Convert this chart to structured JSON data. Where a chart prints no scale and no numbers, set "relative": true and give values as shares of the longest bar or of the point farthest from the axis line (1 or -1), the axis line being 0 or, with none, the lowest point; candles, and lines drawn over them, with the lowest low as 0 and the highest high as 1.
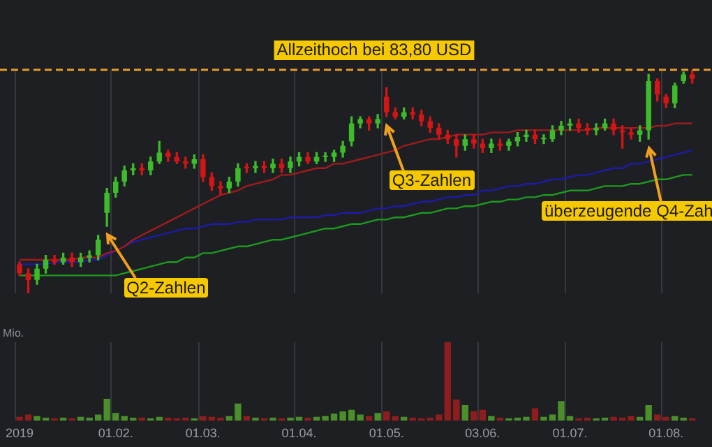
{
  "chart_data": [
    {
      "type": "candlestick",
      "relative": true,
      "grid": "x",
      "tick_labels": false,
      "marker": "none",
      "categories": [
        "2019",
        null,
        null,
        null,
        null,
        null,
        null,
        null,
        null,
        null,
        null,
        "01.02.",
        null,
        null,
        null,
        null,
        null,
        null,
        null,
        null,
        null,
        "01.03.",
        null,
        null,
        null,
        null,
        null,
        null,
        null,
        null,
        null,
        null,
        "01.04.",
        null,
        null,
        null,
        null,
        null,
        null,
        null,
        null,
        null,
        "01.05.",
        null,
        null,
        null,
        null,
        null,
        null,
        null,
        null,
        null,
        null,
        "03.06.",
        null,
        null,
        null,
        null,
        null,
        null,
        null,
        null,
        null,
        "01.07.",
        null,
        null,
        null,
        null,
        null,
        null,
        null,
        null,
        null,
        null,
        "01.08.",
        null,
        null,
        null
      ],
      "ohlc": [
        [
          0.13,
          0.14,
          0.08,
          0.09
        ],
        [
          0.09,
          0.11,
          0,
          0.06
        ],
        [
          0.06,
          0.13,
          0.04,
          0.11
        ],
        [
          0.11,
          0.17,
          0.09,
          0.15
        ],
        [
          0.15,
          0.17,
          0.13,
          0.14
        ],
        [
          0.14,
          0.18,
          0.13,
          0.16
        ],
        [
          0.16,
          0.18,
          0.12,
          0.14
        ],
        [
          0.14,
          0.18,
          0.12,
          0.16
        ],
        [
          0.16,
          0.19,
          0.14,
          0.17
        ],
        [
          0.17,
          0.26,
          0.15,
          0.24
        ],
        [
          0.36,
          0.47,
          0.3,
          0.45
        ],
        [
          0.45,
          0.52,
          0.43,
          0.5
        ],
        [
          0.5,
          0.57,
          0.48,
          0.55
        ],
        [
          0.55,
          0.58,
          0.53,
          0.56
        ],
        [
          0.56,
          0.58,
          0.53,
          0.55
        ],
        [
          0.55,
          0.61,
          0.53,
          0.59
        ],
        [
          0.59,
          0.68,
          0.58,
          0.63
        ],
        [
          0.63,
          0.64,
          0.59,
          0.61
        ],
        [
          0.61,
          0.63,
          0.58,
          0.59
        ],
        [
          0.59,
          0.61,
          0.56,
          0.58
        ],
        [
          0.58,
          0.62,
          0.56,
          0.6
        ],
        [
          0.6,
          0.62,
          0.5,
          0.52
        ],
        [
          0.52,
          0.54,
          0.46,
          0.48
        ],
        [
          0.48,
          0.5,
          0.44,
          0.47
        ],
        [
          0.47,
          0.52,
          0.45,
          0.5
        ],
        [
          0.5,
          0.58,
          0.48,
          0.56
        ],
        [
          0.56,
          0.58,
          0.54,
          0.56
        ],
        [
          0.56,
          0.59,
          0.54,
          0.57
        ],
        [
          0.57,
          0.59,
          0.54,
          0.56
        ],
        [
          0.56,
          0.6,
          0.54,
          0.58
        ],
        [
          0.58,
          0.6,
          0.54,
          0.56
        ],
        [
          0.56,
          0.61,
          0.54,
          0.59
        ],
        [
          0.59,
          0.63,
          0.57,
          0.61
        ],
        [
          0.61,
          0.63,
          0.58,
          0.59
        ],
        [
          0.59,
          0.63,
          0.58,
          0.61
        ],
        [
          0.61,
          0.63,
          0.59,
          0.61
        ],
        [
          0.61,
          0.64,
          0.59,
          0.63
        ],
        [
          0.63,
          0.68,
          0.61,
          0.66
        ],
        [
          0.68,
          0.79,
          0.66,
          0.76
        ],
        [
          0.76,
          0.79,
          0.74,
          0.78
        ],
        [
          0.78,
          0.79,
          0.73,
          0.76
        ],
        [
          0.76,
          0.8,
          0.74,
          0.78
        ],
        [
          0.88,
          0.92,
          0.79,
          0.81
        ],
        [
          0.81,
          0.83,
          0.78,
          0.79
        ],
        [
          0.79,
          0.83,
          0.78,
          0.81
        ],
        [
          0.81,
          0.83,
          0.78,
          0.8
        ],
        [
          0.8,
          0.82,
          0.75,
          0.77
        ],
        [
          0.77,
          0.79,
          0.72,
          0.74
        ],
        [
          0.74,
          0.76,
          0.69,
          0.71
        ],
        [
          0.71,
          0.73,
          0.67,
          0.69
        ],
        [
          0.69,
          0.71,
          0.61,
          0.66
        ],
        [
          0.66,
          0.71,
          0.64,
          0.69
        ],
        [
          0.69,
          0.71,
          0.65,
          0.67
        ],
        [
          0.67,
          0.69,
          0.63,
          0.65
        ],
        [
          0.65,
          0.69,
          0.63,
          0.67
        ],
        [
          0.67,
          0.69,
          0.64,
          0.66
        ],
        [
          0.66,
          0.69,
          0.64,
          0.68
        ],
        [
          0.68,
          0.72,
          0.66,
          0.7
        ],
        [
          0.7,
          0.73,
          0.68,
          0.71
        ],
        [
          0.71,
          0.73,
          0.67,
          0.69
        ],
        [
          0.69,
          0.71,
          0.67,
          0.69
        ],
        [
          0.69,
          0.75,
          0.68,
          0.73
        ],
        [
          0.73,
          0.77,
          0.71,
          0.75
        ],
        [
          0.75,
          0.78,
          0.73,
          0.76
        ],
        [
          0.76,
          0.78,
          0.72,
          0.74
        ],
        [
          0.74,
          0.76,
          0.71,
          0.73
        ],
        [
          0.73,
          0.76,
          0.71,
          0.74
        ],
        [
          0.74,
          0.78,
          0.73,
          0.76
        ],
        [
          0.76,
          0.78,
          0.71,
          0.73
        ],
        [
          0.73,
          0.75,
          0.65,
          0.72
        ],
        [
          0.72,
          0.74,
          0.69,
          0.71
        ],
        [
          0.71,
          0.75,
          0.68,
          0.73
        ],
        [
          0.73,
          0.98,
          0.69,
          0.95
        ],
        [
          0.95,
          0.96,
          0.86,
          0.89
        ],
        [
          0.88,
          0.89,
          0.83,
          0.85
        ],
        [
          0.85,
          0.94,
          0.83,
          0.93
        ],
        [
          0.95,
          0.99,
          0.94,
          0.98
        ],
        [
          0.98,
          1,
          0.94,
          0.96
        ]
      ],
      "colors": [
        "#d41515",
        "#d41515",
        "#3dbb2a",
        "#3dbb2a",
        "#d41515",
        "#3dbb2a",
        "#d41515",
        "#3dbb2a",
        "#3dbb2a",
        "#3dbb2a",
        "#3dbb2a",
        "#3dbb2a",
        "#3dbb2a",
        "#3dbb2a",
        "#d41515",
        "#3dbb2a",
        "#3dbb2a",
        "#d41515",
        "#d41515",
        "#d41515",
        "#3dbb2a",
        "#d41515",
        "#d41515",
        "#d41515",
        "#3dbb2a",
        "#3dbb2a",
        "#d41515",
        "#3dbb2a",
        "#d41515",
        "#3dbb2a",
        "#d41515",
        "#3dbb2a",
        "#3dbb2a",
        "#d41515",
        "#3dbb2a",
        "#3dbb2a",
        "#3dbb2a",
        "#3dbb2a",
        "#3dbb2a",
        "#3dbb2a",
        "#d41515",
        "#3dbb2a",
        "#d41515",
        "#d41515",
        "#3dbb2a",
        "#d41515",
        "#d41515",
        "#d41515",
        "#d41515",
        "#d41515",
        "#d41515",
        "#3dbb2a",
        "#d41515",
        "#d41515",
        "#3dbb2a",
        "#d41515",
        "#3dbb2a",
        "#3dbb2a",
        "#3dbb2a",
        "#d41515",
        "#3dbb2a",
        "#3dbb2a",
        "#3dbb2a",
        "#3dbb2a",
        "#d41515",
        "#d41515",
        "#3dbb2a",
        "#3dbb2a",
        "#d41515",
        "#d41515",
        "#d41515",
        "#3dbb2a",
        "#3dbb2a",
        "#d41515",
        "#d41515",
        "#3dbb2a",
        "#3dbb2a",
        "#d41515"
      ],
      "series": [
        {
          "type": "line",
          "color": "#a01c1c",
          "values": [
            0.15,
            0.15,
            0.15,
            0.15,
            0.15,
            0.15,
            0.15,
            0.16,
            0.16,
            0.16,
            0.18,
            0.19,
            0.21,
            0.24,
            0.26,
            0.28,
            0.3,
            0.32,
            0.34,
            0.36,
            0.38,
            0.4,
            0.42,
            0.44,
            0.45,
            0.46,
            0.48,
            0.49,
            0.5,
            0.51,
            0.53,
            0.53,
            0.54,
            0.55,
            0.56,
            0.56,
            0.58,
            0.58,
            0.59,
            0.6,
            0.61,
            0.62,
            0.63,
            0.64,
            0.66,
            0.67,
            0.68,
            0.69,
            0.69,
            0.7,
            0.71,
            0.71,
            0.71,
            0.71,
            0.72,
            0.72,
            0.72,
            0.73,
            0.73,
            0.73,
            0.73,
            0.73,
            0.73,
            0.73,
            0.73,
            0.73,
            0.74,
            0.74,
            0.74,
            0.74,
            0.74,
            0.74,
            0.74,
            0.75,
            0.75,
            0.76,
            0.76,
            0.76
          ]
        },
        {
          "type": "line",
          "color": "#1c1ca8",
          "values": [
            0.13,
            0.13,
            0.13,
            0.13,
            0.14,
            0.14,
            0.14,
            0.14,
            0.15,
            0.15,
            0.17,
            0.19,
            0.21,
            0.23,
            0.24,
            0.25,
            0.26,
            0.27,
            0.28,
            0.29,
            0.29,
            0.3,
            0.31,
            0.31,
            0.31,
            0.32,
            0.32,
            0.33,
            0.33,
            0.33,
            0.33,
            0.34,
            0.34,
            0.34,
            0.34,
            0.35,
            0.35,
            0.36,
            0.36,
            0.36,
            0.37,
            0.38,
            0.38,
            0.39,
            0.39,
            0.4,
            0.41,
            0.41,
            0.42,
            0.43,
            0.43,
            0.44,
            0.44,
            0.46,
            0.46,
            0.47,
            0.48,
            0.48,
            0.49,
            0.49,
            0.5,
            0.51,
            0.51,
            0.52,
            0.53,
            0.53,
            0.54,
            0.55,
            0.56,
            0.56,
            0.58,
            0.58,
            0.59,
            0.6,
            0.61,
            0.62,
            0.63,
            0.64
          ]
        },
        {
          "type": "line",
          "color": "#1e9a1e",
          "values": [
            0.08,
            0.08,
            0.08,
            0.08,
            0.08,
            0.08,
            0.08,
            0.08,
            0.08,
            0.08,
            0.08,
            0.08,
            0.09,
            0.1,
            0.11,
            0.12,
            0.13,
            0.14,
            0.14,
            0.16,
            0.16,
            0.18,
            0.18,
            0.19,
            0.2,
            0.21,
            0.21,
            0.22,
            0.23,
            0.24,
            0.24,
            0.25,
            0.26,
            0.27,
            0.28,
            0.29,
            0.29,
            0.3,
            0.31,
            0.31,
            0.32,
            0.33,
            0.33,
            0.34,
            0.34,
            0.35,
            0.36,
            0.36,
            0.37,
            0.38,
            0.38,
            0.39,
            0.39,
            0.4,
            0.41,
            0.41,
            0.42,
            0.42,
            0.43,
            0.43,
            0.44,
            0.44,
            0.45,
            0.46,
            0.46,
            0.46,
            0.47,
            0.48,
            0.48,
            0.48,
            0.49,
            0.49,
            0.5,
            0.51,
            0.51,
            0.52,
            0.53,
            0.53
          ]
        }
      ],
      "ref_lines": [
        {
          "axis": "y",
          "value": 1,
          "label": "Allzeithoch bei 83,80 USD",
          "color": "#e39a2a",
          "line_style": "dashed"
        }
      ],
      "annotations": [
        "Q2-Zahlen",
        "Q3-Zahlen",
        "überzeugende Q4-Zah"
      ]
    },
    {
      "type": "bar",
      "relative": true,
      "grid": "x",
      "categories": [
        "2019",
        null,
        null,
        null,
        null,
        null,
        null,
        null,
        null,
        null,
        null,
        "01.02.",
        null,
        null,
        null,
        null,
        null,
        null,
        null,
        null,
        null,
        "01.03.",
        null,
        null,
        null,
        null,
        null,
        null,
        null,
        null,
        null,
        null,
        "01.04.",
        null,
        null,
        null,
        null,
        null,
        null,
        null,
        null,
        null,
        "01.05.",
        null,
        null,
        null,
        null,
        null,
        null,
        null,
        null,
        null,
        null,
        "03.06.",
        null,
        null,
        null,
        null,
        null,
        null,
        null,
        null,
        null,
        "01.07.",
        null,
        null,
        null,
        null,
        null,
        null,
        null,
        null,
        null,
        null,
        "01.08.",
        null,
        null,
        null
      ],
      "values": [
        0.05,
        0.08,
        0.06,
        0.04,
        0.03,
        0.04,
        0.03,
        0.05,
        0.04,
        0.08,
        0.28,
        0.1,
        0.06,
        0.04,
        0.04,
        0.03,
        0.05,
        0.04,
        0.03,
        0.04,
        0.03,
        0.06,
        0.05,
        0.04,
        0.06,
        0.22,
        0.06,
        0.04,
        0.03,
        0.04,
        0.03,
        0.04,
        0.05,
        0.04,
        0.05,
        0.06,
        0.09,
        0.12,
        0.14,
        0.08,
        0.06,
        0.1,
        0.12,
        0.06,
        0.05,
        0.04,
        0.03,
        0.04,
        0.08,
        1,
        0.27,
        0.2,
        0.12,
        0.14,
        0.06,
        0.04,
        0.03,
        0.04,
        0.05,
        0.16,
        0.05,
        0.08,
        0.25,
        0.06,
        0.03,
        0.04,
        0.03,
        0.04,
        0.05,
        0.04,
        0.06,
        0.05,
        0.2,
        0.08,
        0.05,
        0.06,
        0.04,
        0.03
      ],
      "colors": [
        "#8f1d1d",
        "#8f1d1d",
        "#4a8f2a",
        "#4a8f2a",
        "#8f1d1d",
        "#4a8f2a",
        "#8f1d1d",
        "#4a8f2a",
        "#4a8f2a",
        "#4a8f2a",
        "#4a8f2a",
        "#4a8f2a",
        "#4a8f2a",
        "#4a8f2a",
        "#8f1d1d",
        "#4a8f2a",
        "#4a8f2a",
        "#8f1d1d",
        "#8f1d1d",
        "#8f1d1d",
        "#4a8f2a",
        "#8f1d1d",
        "#8f1d1d",
        "#8f1d1d",
        "#4a8f2a",
        "#4a8f2a",
        "#8f1d1d",
        "#4a8f2a",
        "#8f1d1d",
        "#4a8f2a",
        "#8f1d1d",
        "#4a8f2a",
        "#4a8f2a",
        "#8f1d1d",
        "#4a8f2a",
        "#4a8f2a",
        "#4a8f2a",
        "#4a8f2a",
        "#4a8f2a",
        "#4a8f2a",
        "#8f1d1d",
        "#4a8f2a",
        "#8f1d1d",
        "#8f1d1d",
        "#4a8f2a",
        "#8f1d1d",
        "#8f1d1d",
        "#8f1d1d",
        "#8f1d1d",
        "#8f1d1d",
        "#8f1d1d",
        "#4a8f2a",
        "#8f1d1d",
        "#8f1d1d",
        "#4a8f2a",
        "#8f1d1d",
        "#4a8f2a",
        "#4a8f2a",
        "#4a8f2a",
        "#8f1d1d",
        "#4a8f2a",
        "#4a8f2a",
        "#4a8f2a",
        "#4a8f2a",
        "#8f1d1d",
        "#8f1d1d",
        "#4a8f2a",
        "#4a8f2a",
        "#8f1d1d",
        "#8f1d1d",
        "#8f1d1d",
        "#4a8f2a",
        "#4a8f2a",
        "#8f1d1d",
        "#8f1d1d",
        "#4a8f2a",
        "#4a8f2a",
        "#8f1d1d"
      ],
      "annotations": [
        "Mio."
      ]
    }
  ]
}
